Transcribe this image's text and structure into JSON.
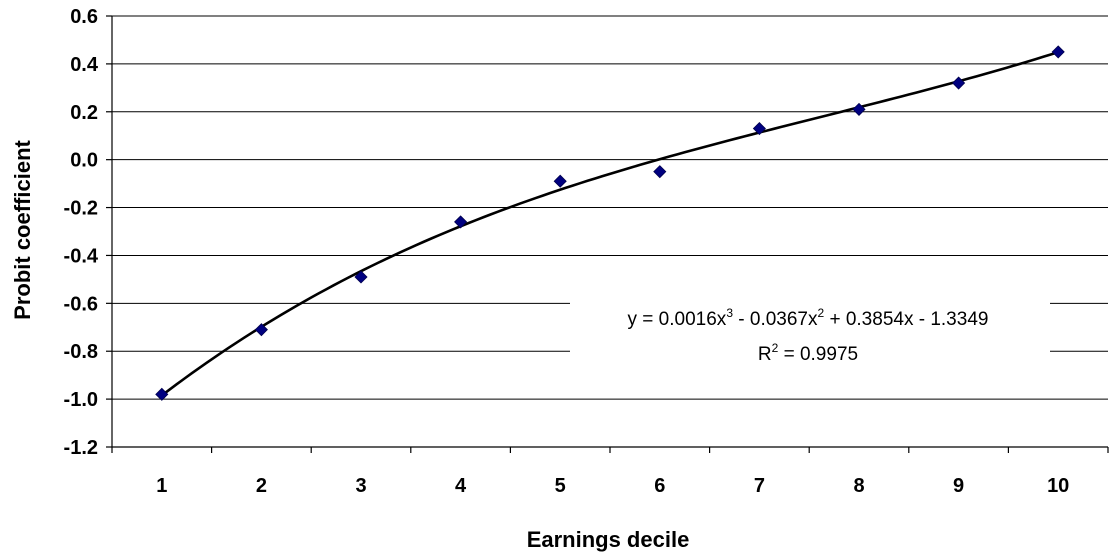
{
  "chart_data": {
    "type": "scatter",
    "xlabel": "Earnings decile",
    "ylabel": "Probit coefficient",
    "x": [
      1,
      2,
      3,
      4,
      5,
      6,
      7,
      8,
      9,
      10
    ],
    "y": [
      -0.98,
      -0.71,
      -0.49,
      -0.26,
      -0.09,
      -0.05,
      0.13,
      0.21,
      0.32,
      0.45
    ],
    "xlim": [
      0.5,
      10.5
    ],
    "ylim": [
      -1.2,
      0.6
    ],
    "x_ticks": [
      "1",
      "2",
      "3",
      "4",
      "5",
      "6",
      "7",
      "8",
      "9",
      "10"
    ],
    "y_ticks": [
      "0.6",
      "0.4",
      "0.2",
      "0.0",
      "-0.2",
      "-0.4",
      "-0.6",
      "-0.8",
      "-1.0",
      "-1.2"
    ],
    "grid": "horizontal",
    "marker": "diamond",
    "marker_color": "#000080",
    "trendline": {
      "type": "polynomial",
      "order": 3,
      "coefficients": [
        0.0016,
        -0.0367,
        0.3854,
        -1.3349
      ],
      "color": "#000000",
      "equation_line": "y = 0.0016x",
      "equation_parts": [
        "y = 0.0016x",
        "3",
        " - 0.0367x",
        "2",
        " + 0.3854x - 1.3349"
      ],
      "r2_parts": [
        "R",
        "2",
        " = 0.9975"
      ]
    }
  }
}
